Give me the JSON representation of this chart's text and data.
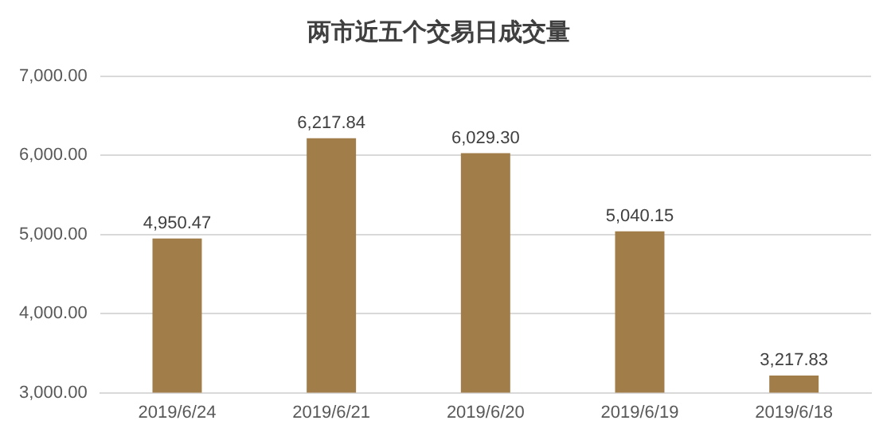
{
  "chart_data": {
    "type": "bar",
    "title": "两市近五个交易日成交量",
    "categories": [
      "2019/6/24",
      "2019/6/21",
      "2019/6/20",
      "2019/6/19",
      "2019/6/18"
    ],
    "values": [
      4950.47,
      6217.84,
      6029.3,
      5040.15,
      3217.83
    ],
    "color": "#a17d4a",
    "ylim": [
      3000,
      7000
    ],
    "yticks": [
      {
        "value": 3000,
        "label": "3,000.00"
      },
      {
        "value": 4000,
        "label": "4,000.00"
      },
      {
        "value": 5000,
        "label": "5,000.00"
      },
      {
        "value": 6000,
        "label": "6,000.00"
      },
      {
        "value": 7000,
        "label": "7,000.00"
      }
    ],
    "value_labels": [
      "4,950.47",
      "6,217.84",
      "6,029.30",
      "5,040.15",
      "3,217.83"
    ],
    "grid": "y"
  }
}
